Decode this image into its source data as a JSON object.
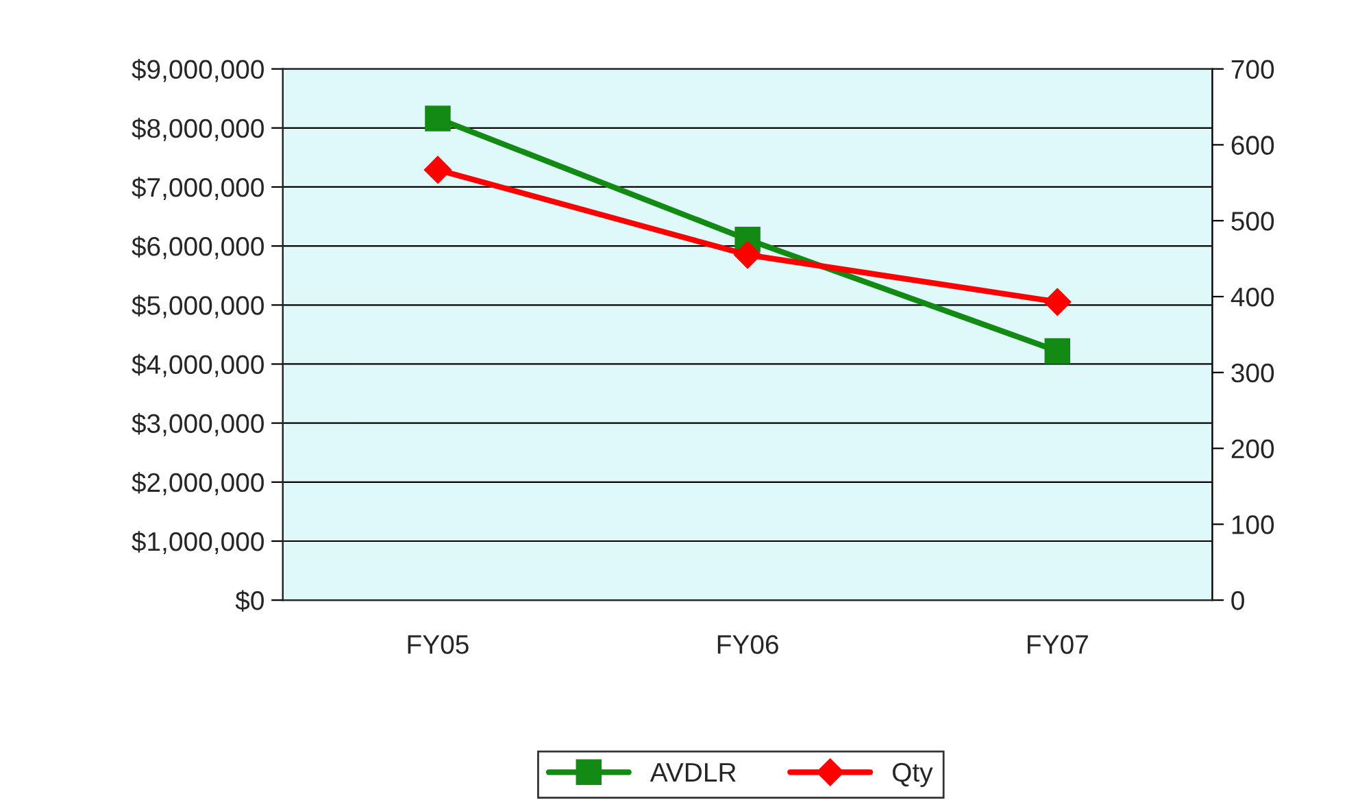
{
  "chart_data": {
    "type": "line",
    "categories": [
      "FY05",
      "FY06",
      "FY07"
    ],
    "series": [
      {
        "name": "AVDLR",
        "color": "#138a13",
        "marker": "square",
        "values": [
          8160000,
          6110000,
          4220000
        ]
      },
      {
        "name": "Qty",
        "color": "#ff0000",
        "marker": "diamond",
        "axis": "y2",
        "values": [
          567,
          455,
          393
        ]
      }
    ],
    "ylim": [
      0,
      9000000
    ],
    "yticks": [
      {
        "value": 0,
        "label": "$0"
      },
      {
        "value": 1000000,
        "label": "$1,000,000"
      },
      {
        "value": 2000000,
        "label": "$2,000,000"
      },
      {
        "value": 3000000,
        "label": "$3,000,000"
      },
      {
        "value": 4000000,
        "label": "$4,000,000"
      },
      {
        "value": 5000000,
        "label": "$5,000,000"
      },
      {
        "value": 6000000,
        "label": "$6,000,000"
      },
      {
        "value": 7000000,
        "label": "$7,000,000"
      },
      {
        "value": 8000000,
        "label": "$8,000,000"
      },
      {
        "value": 9000000,
        "label": "$9,000,000"
      }
    ],
    "y2lim": [
      0,
      700
    ],
    "y2ticks": [
      0,
      100,
      200,
      300,
      400,
      500,
      600,
      700
    ],
    "grid": "y",
    "legend": "bottom",
    "line_style": "solid"
  }
}
